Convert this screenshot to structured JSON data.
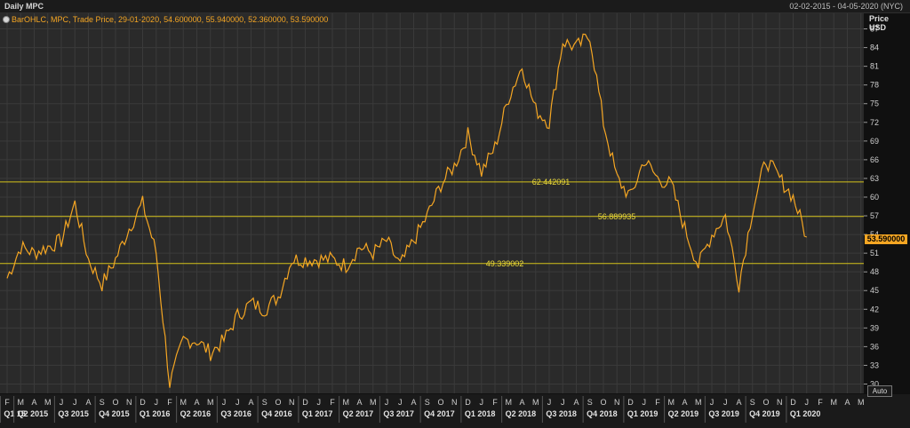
{
  "window": {
    "title": "Daily MPC",
    "date_range": "02-02-2015 - 04-05-2020 (NYC)"
  },
  "legend": {
    "text": "BarOHLC, MPC, Trade Price, 29-01-2020, 54.600000, 55.940000, 52.360000, 53.590000",
    "icon": "settings-circle-icon"
  },
  "y_axis": {
    "title_line1": "Price",
    "title_line2": "USD",
    "last_price_label": "53.590000",
    "auto_label": "Auto"
  },
  "colors": {
    "background": "#2a2a2a",
    "grid": "#3a3a3a",
    "series": "#f5a623",
    "levels": "#d4c21a"
  },
  "chart_data": {
    "type": "line",
    "title": "Daily MPC",
    "series_label": "BarOHLC, MPC, Trade Price",
    "ylim": [
      28.5,
      89.5
    ],
    "yticks": [
      30,
      33,
      36,
      39,
      42,
      45,
      48,
      51,
      54,
      57,
      60,
      63,
      66,
      69,
      72,
      75,
      78,
      81,
      84,
      87
    ],
    "grid": true,
    "horizontal_levels": [
      {
        "value": 62.442091,
        "label": "62.442091"
      },
      {
        "value": 56.889935,
        "label": "56.889935"
      },
      {
        "value": 49.339002,
        "label": "49.339002"
      }
    ],
    "last_price": 53.59,
    "x_months": [
      "F",
      "M",
      "A",
      "M",
      "J",
      "J",
      "A",
      "S",
      "O",
      "N",
      "D",
      "J",
      "F",
      "M",
      "A",
      "M",
      "J",
      "J",
      "A",
      "S",
      "O",
      "N",
      "D",
      "J",
      "F",
      "M",
      "A",
      "M",
      "J",
      "J",
      "A",
      "S",
      "O",
      "N",
      "D",
      "J",
      "F",
      "M",
      "A",
      "M",
      "J",
      "J",
      "A",
      "S",
      "O",
      "N",
      "D",
      "J",
      "F",
      "M",
      "A",
      "M",
      "J",
      "J",
      "A",
      "S",
      "O",
      "N",
      "D",
      "J",
      "F",
      "M",
      "A",
      "M"
    ],
    "x_quarters": [
      "Q1 15",
      "Q2 2015",
      "Q3 2015",
      "Q4 2015",
      "Q1 2016",
      "Q2 2016",
      "Q3 2016",
      "Q4 2016",
      "Q1 2017",
      "Q2 2017",
      "Q3 2017",
      "Q4 2017",
      "Q1 2018",
      "Q2 2018",
      "Q3 2018",
      "Q4 2018",
      "Q1 2019",
      "Q2 2019",
      "Q3 2019",
      "Q4 2019",
      "Q1 2020"
    ],
    "x": [
      "2015-02",
      "2015-03",
      "2015-04",
      "2015-05",
      "2015-06",
      "2015-07",
      "2015-08",
      "2015-09",
      "2015-10",
      "2015-11",
      "2015-12",
      "2016-01",
      "2016-02",
      "2016-03",
      "2016-04",
      "2016-05",
      "2016-06",
      "2016-07",
      "2016-08",
      "2016-09",
      "2016-10",
      "2016-11",
      "2016-12",
      "2017-01",
      "2017-02",
      "2017-03",
      "2017-04",
      "2017-05",
      "2017-06",
      "2017-07",
      "2017-08",
      "2017-09",
      "2017-10",
      "2017-11",
      "2017-12",
      "2018-01",
      "2018-02",
      "2018-03",
      "2018-04",
      "2018-05",
      "2018-06",
      "2018-07",
      "2018-08",
      "2018-09",
      "2018-10",
      "2018-11",
      "2018-12",
      "2019-01",
      "2019-02",
      "2019-03",
      "2019-04",
      "2019-05",
      "2019-06",
      "2019-07",
      "2019-08",
      "2019-09",
      "2019-10",
      "2019-11",
      "2019-12",
      "2020-01"
    ],
    "y": [
      47,
      52,
      51,
      52,
      53,
      59,
      50,
      46,
      50,
      55,
      59,
      51,
      30,
      37,
      37,
      35,
      37,
      41,
      43,
      42,
      44,
      50,
      50,
      50,
      50,
      49,
      52,
      51,
      53,
      49,
      53,
      57,
      62,
      65,
      70,
      64,
      68,
      76,
      81,
      74,
      72,
      85,
      84,
      86,
      72,
      63,
      60,
      66,
      63,
      62,
      55,
      49,
      54,
      57,
      46,
      58,
      66,
      63,
      60,
      53.59
    ]
  }
}
